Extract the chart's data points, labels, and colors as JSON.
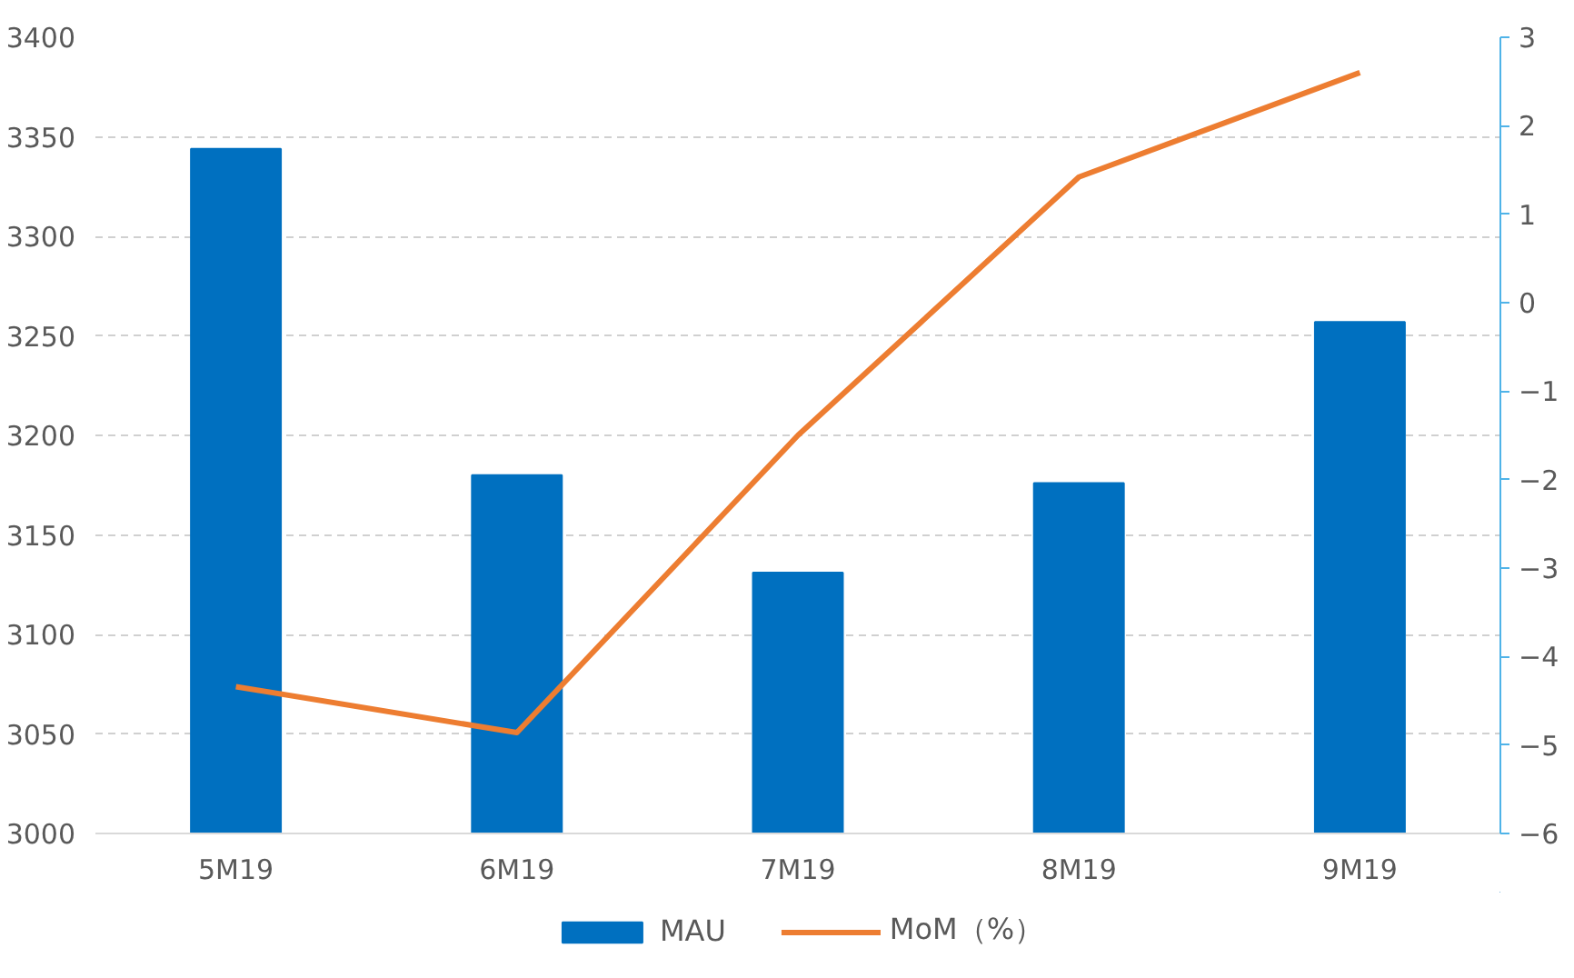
{
  "chart_data": {
    "type": "bar",
    "categories": [
      "5M19",
      "6M19",
      "7M19",
      "8M19",
      "9M19"
    ],
    "series": [
      {
        "name": "MAU",
        "color": "#0070c0",
        "type": "bar",
        "values": [
          3344,
          3180,
          3131,
          3176,
          3257
        ]
      },
      {
        "name": "MoM（%）",
        "color": "#ed7d31",
        "type": "line",
        "axis": "y2",
        "values": [
          -4.34,
          -4.86,
          -1.5,
          1.42,
          2.6
        ]
      }
    ],
    "ylim": [
      3000,
      3400
    ],
    "yticks": [
      3000,
      3050,
      3100,
      3150,
      3200,
      3250,
      3300,
      3350,
      3400
    ],
    "y2lim": [
      -6,
      3
    ],
    "y2ticks": [
      -6,
      -5,
      -4,
      -3,
      -2,
      -1,
      0,
      1,
      2,
      3
    ],
    "grid": "y",
    "legend": "bottom",
    "marker": "none",
    "line_style": "solid"
  }
}
